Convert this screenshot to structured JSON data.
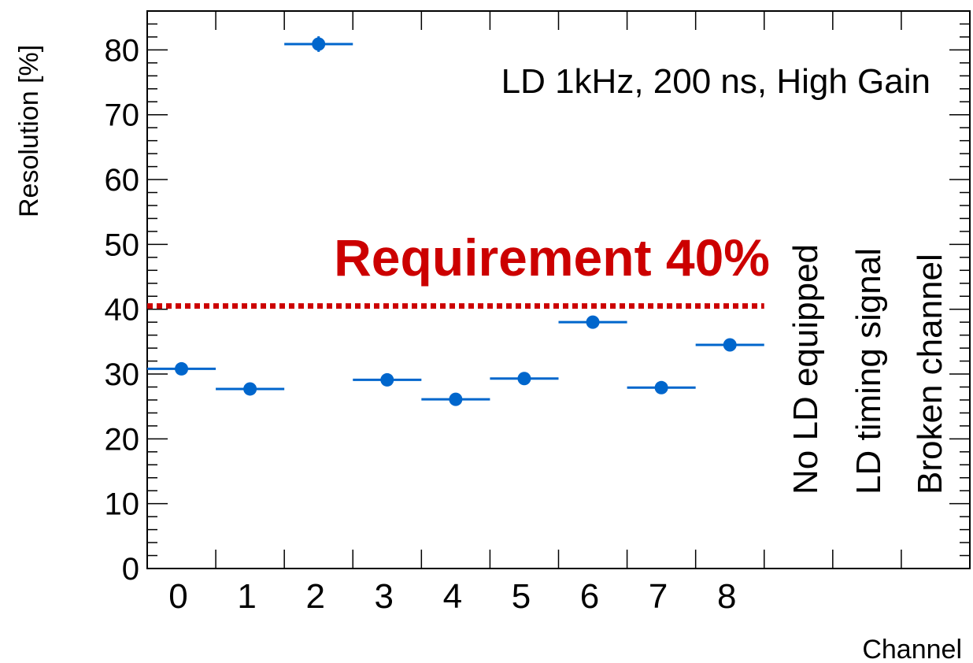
{
  "chart_data": {
    "type": "scatter",
    "xlabel": "Channel",
    "ylabel": "Resolution [%]",
    "ylim": [
      0,
      86
    ],
    "xlim": [
      0,
      12
    ],
    "yticks": [
      0,
      10,
      20,
      30,
      40,
      50,
      60,
      70,
      80
    ],
    "categories": [
      "0",
      "1",
      "2",
      "3",
      "4",
      "5",
      "6",
      "7",
      "8"
    ],
    "values": [
      30.8,
      27.7,
      80.9,
      29.1,
      26.1,
      29.3,
      38.0,
      27.9,
      34.5
    ],
    "yerr": [
      0.3,
      0.3,
      1.2,
      0.3,
      0.3,
      0.3,
      0.3,
      0.3,
      0.3
    ],
    "annotation": "LD 1kHz, 200 ns, High Gain",
    "requirement": {
      "value": 40.5,
      "label": "Requirement 40%"
    },
    "notes": [
      "No LD equipped",
      "LD timing signal",
      "Broken channel"
    ],
    "colors": {
      "data": "#0066cc",
      "requirement": "#cc0000"
    },
    "grid": false
  }
}
